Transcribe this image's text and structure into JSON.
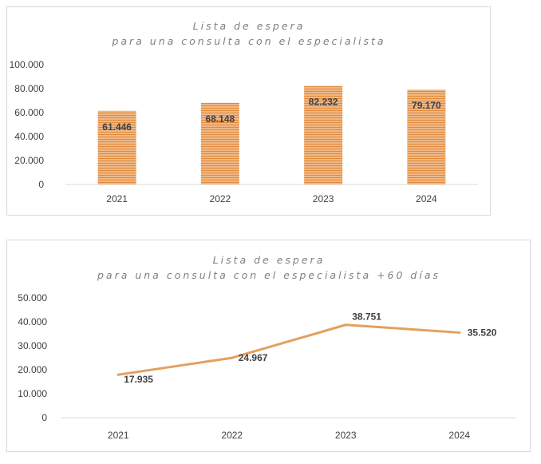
{
  "charts": [
    {
      "type": "bar",
      "title_lines": [
        "Lista de espera",
        "para una consulta con el especialista"
      ],
      "categories": [
        "2021",
        "2022",
        "2023",
        "2024"
      ],
      "values": [
        61446,
        68148,
        82232,
        79170
      ],
      "value_labels": [
        "61.446",
        "68.148",
        "82.232",
        "79.170"
      ],
      "y_ticks": [
        "0",
        "20.000",
        "40.000",
        "60.000",
        "80.000",
        "100.000"
      ],
      "ylim": [
        0,
        100000
      ],
      "bar_color": "#f0b784",
      "bar_stripe_color": "#e08a3c"
    },
    {
      "type": "line",
      "title_lines": [
        "Lista de espera",
        "para una consulta con el especialista +60 días"
      ],
      "categories": [
        "2021",
        "2022",
        "2023",
        "2024"
      ],
      "values": [
        17935,
        24967,
        38751,
        35520
      ],
      "value_labels": [
        "17.935",
        "24.967",
        "38.751",
        "35.520"
      ],
      "y_ticks": [
        "0",
        "10.000",
        "20.000",
        "30.000",
        "40.000",
        "50.000"
      ],
      "ylim": [
        0,
        50000
      ],
      "line_color": "#e3a060"
    }
  ],
  "chart_data": [
    {
      "type": "bar",
      "title": "Lista de espera para una consulta con el especialista",
      "categories": [
        "2021",
        "2022",
        "2023",
        "2024"
      ],
      "values": [
        61446,
        68148,
        82232,
        79170
      ],
      "ylim": [
        0,
        100000
      ],
      "grid": false,
      "legend": "none"
    },
    {
      "type": "line",
      "title": "Lista de espera para una consulta con el especialista +60 días",
      "categories": [
        "2021",
        "2022",
        "2023",
        "2024"
      ],
      "values": [
        17935,
        24967,
        38751,
        35520
      ],
      "ylim": [
        0,
        50000
      ],
      "grid": false,
      "legend": "none"
    }
  ]
}
